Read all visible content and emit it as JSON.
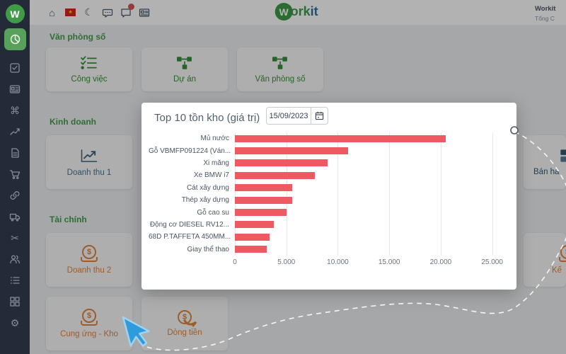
{
  "sidebar": {
    "logo_text": "W",
    "active_icon": "dashboard-pie-icon",
    "icons": [
      "check-square-icon",
      "id-card-icon",
      "command-icon",
      "trend-up-icon",
      "document-icon",
      "cart-icon",
      "link-icon",
      "truck-icon",
      "scissors-icon",
      "users-icon",
      "list-icon",
      "grid-icon",
      "settings-icon"
    ]
  },
  "header": {
    "left_icons": [
      "home-icon",
      "vietnam-flag-icon",
      "moon-icon",
      "chat-icon",
      "message-icon",
      "news-icon"
    ],
    "flag_star": "★",
    "home_glyph": "⌂",
    "moon_glyph": "☾",
    "brand": {
      "circle": "W",
      "part_green": "ork",
      "part_blue": "it"
    },
    "user": {
      "name": "Workit",
      "subtitle": "Tổng C"
    }
  },
  "sections": [
    {
      "title": "Văn phòng số",
      "cards": [
        {
          "label": "Công việc",
          "icon": "checklist-icon"
        },
        {
          "label": "Dự án",
          "icon": "org-chart-icon"
        },
        {
          "label": "Văn phòng số",
          "icon": "org-chart-icon"
        }
      ]
    },
    {
      "title": "Kinh doanh",
      "cards": [
        {
          "label": "Doanh thu 1",
          "icon": "trend-chart-icon"
        },
        {
          "label": "Bán hà",
          "icon": "sales-icon"
        }
      ]
    },
    {
      "title": "Tài chính",
      "cards": [
        {
          "label": "Doanh thu 2",
          "icon": "dollar-coin-icon"
        },
        {
          "label": "Kế",
          "icon": "dollar-coin-icon"
        },
        {
          "label": "Cung ứng - Kho",
          "icon": "dollar-coin-icon"
        },
        {
          "label": "Dòng tiền",
          "icon": "money-flow-icon"
        }
      ]
    }
  ],
  "modal": {
    "title": "Top 10 tồn kho (giá trị)",
    "date_value": "15/09/2023",
    "calendar_icon": "calendar-icon"
  },
  "chart_data": {
    "type": "bar",
    "orientation": "horizontal",
    "title": "Top 10 tồn kho (giá trị)",
    "categories": [
      "Mủ nước",
      "Gỗ VBMFP091224 (Ván...",
      "Xi măng",
      "Xe BMW i7",
      "Cát xây dựng",
      "Thép xây dựng",
      "Gỗ cao su",
      "Động cơ DIESEL RV12...",
      "68D P.TAFFETA 450MM...",
      "Giay thể thao"
    ],
    "values": [
      20500,
      11000,
      9000,
      7800,
      5600,
      5600,
      5000,
      3800,
      3400,
      3100
    ],
    "x_ticks": [
      0,
      5000,
      10000,
      15000,
      20000,
      25000
    ],
    "x_tick_labels": [
      "0",
      "5.000",
      "10.000",
      "15.000",
      "20.000",
      "25.000"
    ],
    "xlim": [
      0,
      26400
    ],
    "bar_color": "#ee5a62",
    "grid": true,
    "legend": false
  },
  "colors": {
    "accent_green": "#43a047",
    "accent_orange": "#e08540",
    "accent_teal": "#49708e",
    "bar_red": "#ee5a62",
    "sidebar_bg": "#242a38",
    "badge_red": "#d9534f"
  }
}
